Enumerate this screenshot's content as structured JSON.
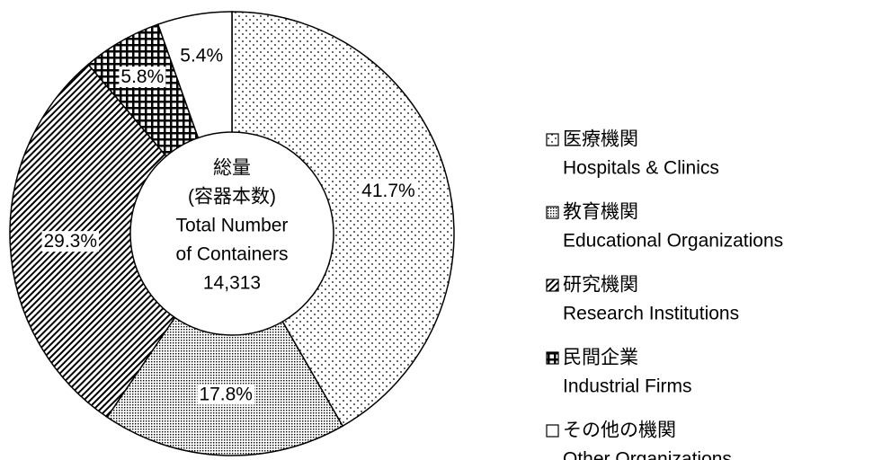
{
  "chart_data": {
    "type": "donut",
    "categories": [
      "医療機関",
      "教育機関",
      "研究機関",
      "民間企業",
      "その他の機関"
    ],
    "categories_en": [
      "Hospitals & Clinics",
      "Educational Organizations",
      "Research Institutions",
      "Industrial Firms",
      "Other Organizations"
    ],
    "values": [
      41.7,
      17.8,
      29.3,
      5.8,
      5.4
    ],
    "value_labels": [
      "41.7%",
      "17.8%",
      "29.3%",
      "5.8%",
      "5.4%"
    ],
    "center_text": [
      "総量",
      "(容器本数)",
      "Total Number",
      "of Containers"
    ],
    "total": {
      "value": 14313,
      "label": "14,313"
    }
  }
}
